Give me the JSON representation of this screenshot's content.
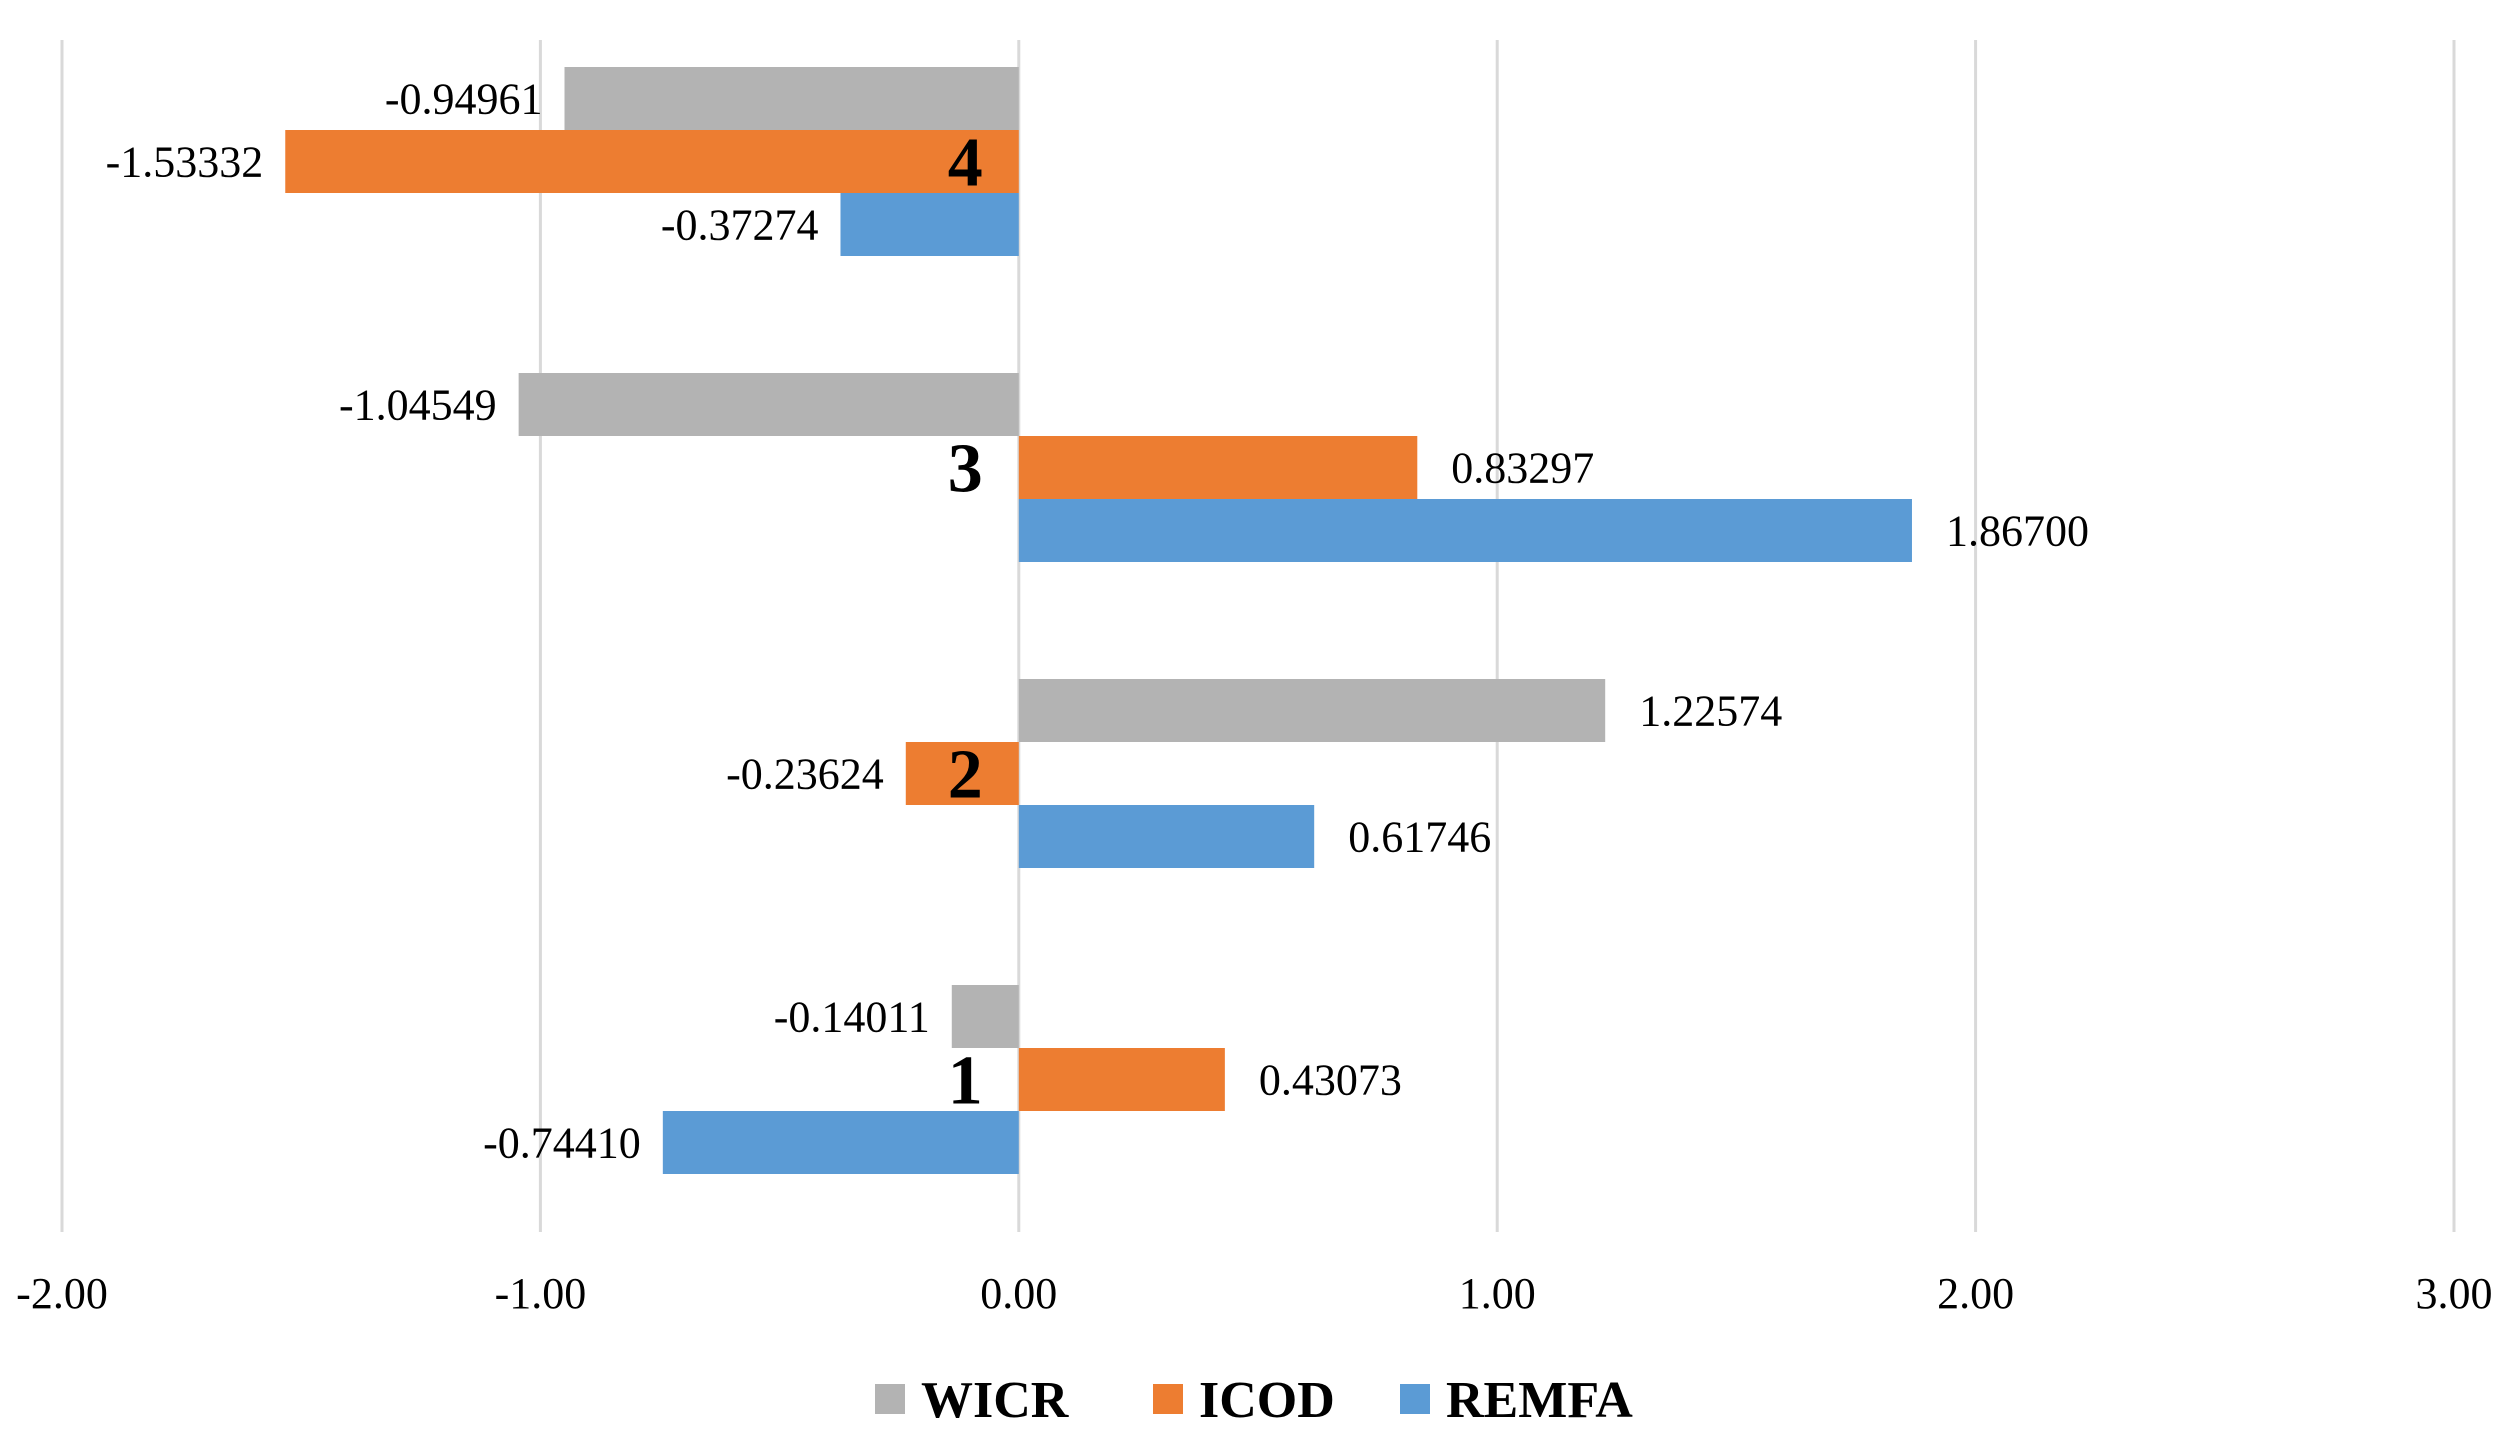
{
  "chart_data": {
    "type": "bar",
    "orientation": "horizontal",
    "title": "",
    "xlabel": "",
    "ylabel": "",
    "xlim": [
      -2,
      3
    ],
    "xticks": [
      -2,
      -1,
      0,
      1,
      2,
      3
    ],
    "xtick_labels": [
      "-2.00",
      "-1.00",
      "0.00",
      "1.00",
      "2.00",
      "3.00"
    ],
    "grid": true,
    "legend_position": "bottom",
    "categories": [
      "1",
      "2",
      "3",
      "4"
    ],
    "series": [
      {
        "name": "WICR",
        "color": "#b3b3b3",
        "values": [
          -0.14011,
          1.22574,
          -1.04549,
          -0.94961
        ],
        "labels": [
          "-0.14011",
          "1.22574",
          "-1.04549",
          "-0.94961"
        ]
      },
      {
        "name": "ICOD",
        "color": "#ed7d31",
        "values": [
          0.43073,
          -0.23624,
          0.83297,
          -1.53332
        ],
        "labels": [
          "0.43073",
          "-0.23624",
          "0.83297",
          "-1.53332"
        ]
      },
      {
        "name": "REMFA",
        "color": "#5b9bd5",
        "values": [
          -0.7441,
          0.61746,
          1.867,
          -0.37274
        ],
        "labels": [
          "-0.74410",
          "0.61746",
          "1.86700",
          "-0.37274"
        ]
      }
    ]
  }
}
